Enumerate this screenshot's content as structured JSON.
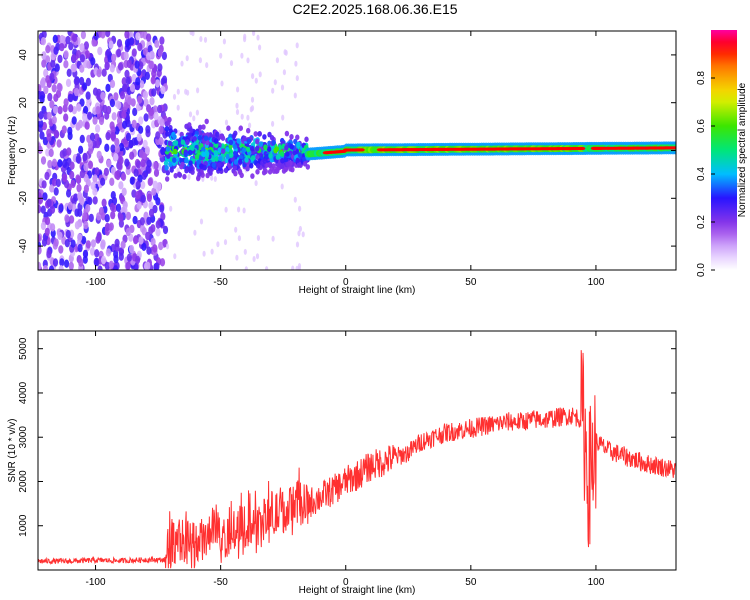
{
  "title": "C2E2.2025.168.06.36.E15",
  "chart_data": [
    {
      "type": "heatmap",
      "xlabel": "Height of straight line (km)",
      "ylabel": "Frequency (Hz)",
      "xlim": [
        -123,
        132
      ],
      "ylim": [
        -50,
        50
      ],
      "xticks": [
        -100,
        -50,
        0,
        50,
        100
      ],
      "yticks": [
        -40,
        -20,
        0,
        20,
        40
      ],
      "colorbar": {
        "label": "Normalized spectral amplitude",
        "ticks": [
          0.0,
          0.2,
          0.4,
          0.6,
          0.8
        ],
        "range": [
          0,
          1
        ],
        "colors": [
          "#ffffff",
          "#d9b3ff",
          "#8a2be2",
          "#0000ff",
          "#00ccff",
          "#00e000",
          "#ffff00",
          "#ff8000",
          "#ff0000",
          "#ff00a0"
        ]
      },
      "regions": [
        {
          "x_range": [
            -123,
            -72
          ],
          "description_value": 0.15,
          "freq_spread_hz": 50
        },
        {
          "x_range": [
            -72,
            -15
          ],
          "description_value": 0.35,
          "freq_spread_hz": 12
        },
        {
          "x_range": [
            -15,
            132
          ],
          "description_value": 0.9,
          "freq_spread_hz": 2
        }
      ]
    },
    {
      "type": "line",
      "xlabel": "Height of straight line (km)",
      "ylabel": "SNR (10 * v/v)",
      "xlim": [
        -123,
        132
      ],
      "ylim": [
        0,
        5400
      ],
      "xticks": [
        -100,
        -50,
        0,
        50,
        100
      ],
      "yticks": [
        1000,
        2000,
        3000,
        4000,
        5000
      ],
      "color": "#ff3030",
      "series": [
        {
          "x": [
            -123,
            -110,
            -100,
            -90,
            -80,
            -72,
            -70,
            -68,
            -65,
            -60,
            -55,
            -50,
            -45,
            -40,
            -35,
            -30,
            -25,
            -20,
            -15,
            -10,
            -5,
            0,
            5,
            10,
            15,
            20,
            25,
            30,
            35,
            40,
            45,
            50,
            55,
            60,
            65,
            70,
            75,
            80,
            85,
            90,
            95,
            97,
            100,
            105,
            110,
            115,
            120,
            125,
            132
          ],
          "y": [
            200,
            200,
            220,
            210,
            230,
            230,
            600,
            800,
            550,
            620,
            700,
            750,
            800,
            900,
            1000,
            1200,
            1300,
            1400,
            1500,
            1650,
            1800,
            2000,
            2150,
            2350,
            2450,
            2550,
            2650,
            2900,
            3000,
            3100,
            3150,
            3200,
            3250,
            3300,
            3350,
            3350,
            3400,
            3400,
            3450,
            3500,
            3400,
            2000,
            2900,
            2700,
            2600,
            2500,
            2400,
            2350,
            2250
          ]
        }
      ]
    }
  ]
}
